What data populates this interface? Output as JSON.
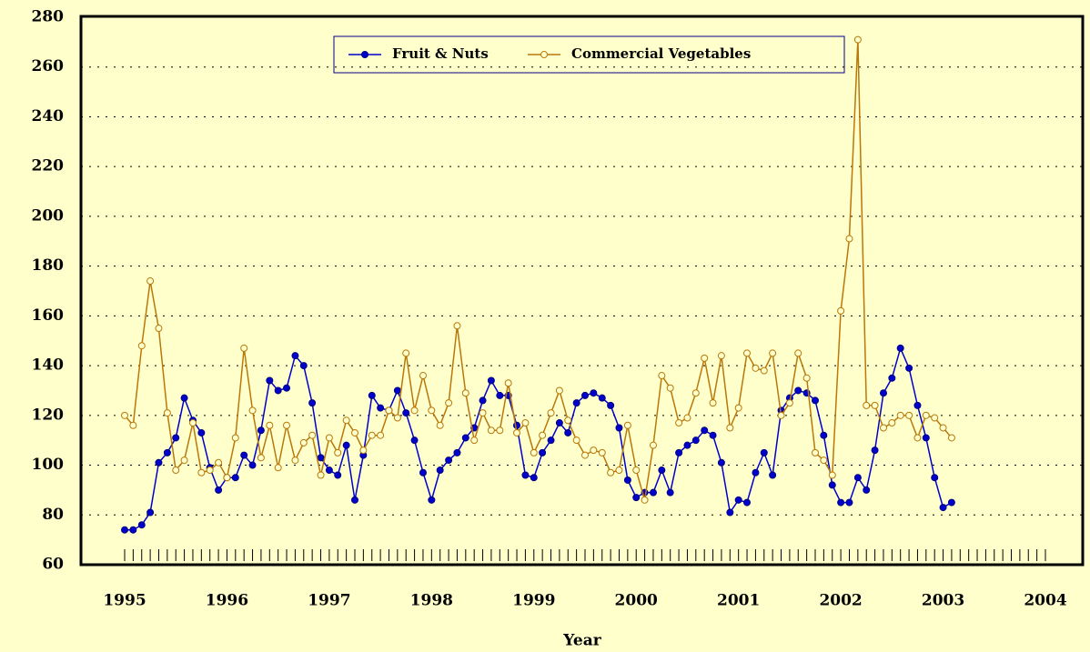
{
  "chart_data": {
    "type": "line",
    "x_label": "Year",
    "x": [
      1995,
      1995.083,
      1995.167,
      1995.25,
      1995.333,
      1995.417,
      1995.5,
      1995.583,
      1995.667,
      1995.75,
      1995.833,
      1995.917,
      1996,
      1996.083,
      1996.167,
      1996.25,
      1996.333,
      1996.417,
      1996.5,
      1996.583,
      1996.667,
      1996.75,
      1996.833,
      1996.917,
      1997,
      1997.083,
      1997.167,
      1997.25,
      1997.333,
      1997.417,
      1997.5,
      1997.583,
      1997.667,
      1997.75,
      1997.833,
      1997.917,
      1998,
      1998.083,
      1998.167,
      1998.25,
      1998.333,
      1998.417,
      1998.5,
      1998.583,
      1998.667,
      1998.75,
      1998.833,
      1998.917,
      1999,
      1999.083,
      1999.167,
      1999.25,
      1999.333,
      1999.417,
      1999.5,
      1999.583,
      1999.667,
      1999.75,
      1999.833,
      1999.917,
      2000,
      2000.083,
      2000.167,
      2000.25,
      2000.333,
      2000.417,
      2000.5,
      2000.583,
      2000.667,
      2000.75,
      2000.833,
      2000.917,
      2001,
      2001.083,
      2001.167,
      2001.25,
      2001.333,
      2001.417,
      2001.5,
      2001.583,
      2001.667,
      2001.75,
      2001.833,
      2001.917,
      2002,
      2002.083,
      2002.167,
      2002.25,
      2002.333,
      2002.417,
      2002.5,
      2002.583,
      2002.667,
      2002.75,
      2002.833,
      2002.917,
      2003,
      2003.083
    ],
    "series": [
      {
        "name": "Fruit & Nuts",
        "color": "#0000cc",
        "marker": "filled",
        "values": [
          74,
          74,
          76,
          81,
          101,
          105,
          111,
          127,
          118,
          113,
          99,
          90,
          95,
          95,
          104,
          100,
          114,
          134,
          130,
          131,
          144,
          140,
          125,
          103,
          98,
          96,
          108,
          86,
          104,
          128,
          123,
          122,
          130,
          121,
          110,
          97,
          86,
          98,
          102,
          105,
          111,
          115,
          126,
          134,
          128,
          128,
          116,
          96,
          95,
          105,
          110,
          117,
          113,
          125,
          128,
          129,
          127,
          124,
          115,
          94,
          87,
          89,
          89,
          98,
          89,
          105,
          108,
          110,
          114,
          112,
          101,
          81,
          86,
          85,
          97,
          105,
          96,
          122,
          127,
          130,
          129,
          126,
          112,
          92,
          85,
          85,
          95,
          90,
          106,
          129,
          135,
          147,
          139,
          124,
          111,
          95,
          83,
          85
        ]
      },
      {
        "name": "Commercial Vegetables",
        "color": "#b8780a",
        "marker": "open",
        "values": [
          120,
          116,
          148,
          174,
          155,
          121,
          98,
          102,
          117,
          97,
          98,
          101,
          95,
          111,
          147,
          122,
          103,
          116,
          99,
          116,
          102,
          109,
          112,
          96,
          111,
          105,
          118,
          113,
          106,
          112,
          112,
          122,
          119,
          145,
          122,
          136,
          122,
          116,
          125,
          156,
          129,
          110,
          121,
          114,
          114,
          133,
          113,
          117,
          105,
          112,
          121,
          130,
          118,
          110,
          104,
          106,
          105,
          97,
          98,
          116,
          98,
          86,
          108,
          136,
          131,
          117,
          119,
          129,
          143,
          125,
          144,
          115,
          123,
          145,
          139,
          138,
          145,
          120,
          125,
          145,
          135,
          105,
          102,
          96,
          162,
          191,
          271,
          124,
          124,
          115,
          117,
          120,
          120,
          111,
          120,
          119,
          115,
          111
        ]
      }
    ],
    "xlim": [
      1995,
      2004
    ],
    "xticks": [
      1995,
      1996,
      1997,
      1998,
      1999,
      2000,
      2001,
      2002,
      2003,
      2004
    ],
    "ylim": [
      60,
      280
    ],
    "yticks": [
      60,
      80,
      100,
      120,
      140,
      160,
      180,
      200,
      220,
      240,
      260,
      280
    ],
    "grid": true,
    "legend": "top"
  }
}
